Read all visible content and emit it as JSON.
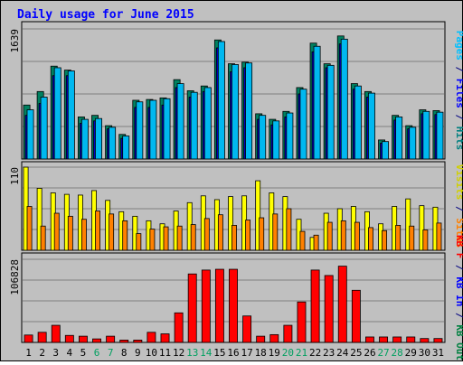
{
  "chart_data": {
    "type": "bar",
    "title": "Daily usage for June 2015",
    "categories": [
      "1",
      "2",
      "3",
      "4",
      "5",
      "6",
      "7",
      "8",
      "9",
      "10",
      "11",
      "12",
      "13",
      "14",
      "15",
      "16",
      "17",
      "18",
      "19",
      "20",
      "21",
      "22",
      "23",
      "24",
      "25",
      "26",
      "27",
      "28",
      "29",
      "30",
      "31"
    ],
    "weekend_days": [
      "6",
      "7",
      "13",
      "14",
      "20",
      "21",
      "27",
      "28"
    ],
    "panels": [
      {
        "id": "top",
        "ymax": 1639,
        "ymax_label": "1639",
        "label_parts": [
          {
            "text": "Pages",
            "color": "#00c0ff"
          },
          {
            "text": " / ",
            "color": "#000080"
          },
          {
            "text": "Files",
            "color": "#0000ff"
          },
          {
            "text": " / ",
            "color": "#000080"
          },
          {
            "text": "Hits",
            "color": "#008080"
          }
        ],
        "series": [
          {
            "name": "Hits",
            "color": "#008060",
            "values": [
              680,
              850,
              1170,
              1120,
              530,
              550,
              420,
              310,
              740,
              750,
              770,
              1000,
              860,
              920,
              1500,
              1200,
              1220,
              570,
              500,
              600,
              900,
              1460,
              1200,
              1550,
              950,
              850,
              240,
              550,
              420,
              620,
              610
            ]
          },
          {
            "name": "Files",
            "color": "#0000c0",
            "values": [
              550,
              700,
              1050,
              1050,
              450,
              480,
              380,
              260,
              650,
              650,
              680,
              900,
              780,
              850,
              1400,
              1100,
              1150,
              500,
              430,
              530,
              820,
              1350,
              1150,
              1450,
              880,
              780,
              200,
              490,
              380,
              570,
              560
            ]
          },
          {
            "name": "Pages",
            "color": "#00b8f0",
            "values": [
              620,
              780,
              1150,
              1110,
              500,
              510,
              400,
              290,
              720,
              740,
              760,
              950,
              840,
              900,
              1480,
              1190,
              1210,
              550,
              480,
              580,
              880,
              1420,
              1180,
              1510,
              920,
              830,
              220,
              530,
              400,
              600,
              590
            ]
          }
        ]
      },
      {
        "id": "middle",
        "ymax": 110,
        "ymax_label": "110",
        "label_parts": [
          {
            "text": "Visits",
            "color": "#d0d000"
          },
          {
            "text": " / ",
            "color": "#000080"
          },
          {
            "text": "Sites",
            "color": "#ff8000"
          }
        ],
        "series": [
          {
            "name": "Visits",
            "color": "#ffff00",
            "values": [
              110,
              82,
              76,
              74,
              73,
              79,
              66,
              51,
              45,
              39,
              35,
              52,
              63,
              72,
              67,
              71,
              72,
              92,
              76,
              71,
              41,
              17,
              49,
              55,
              58,
              51,
              35,
              58,
              68,
              59,
              57
            ]
          },
          {
            "name": "Sites",
            "color": "#ff8000",
            "values": [
              58,
              32,
              49,
              45,
              41,
              52,
              48,
              39,
              22,
              28,
              31,
              32,
              34,
              42,
              47,
              33,
              40,
              43,
              48,
              55,
              25,
              20,
              37,
              39,
              37,
              30,
              26,
              33,
              32,
              27,
              36
            ]
          }
        ]
      },
      {
        "id": "bottom",
        "ymax": 106828,
        "ymax_label": "106828",
        "label_parts": [
          {
            "text": "KB F",
            "color": "#ff0000"
          },
          {
            "text": " / ",
            "color": "#000080"
          },
          {
            "text": "KB In",
            "color": "#0000ff"
          },
          {
            "text": " / ",
            "color": "#000080"
          },
          {
            "text": "KB Out",
            "color": "#008040"
          }
        ],
        "series": [
          {
            "name": "KB F",
            "color": "#ff0000",
            "values": [
              9500,
              13000,
              22000,
              9000,
              8000,
              4500,
              8000,
              3000,
              3000,
              13000,
              11000,
              38000,
              88000,
              93000,
              94000,
              94000,
              34000,
              8000,
              10000,
              22000,
              52000,
              93000,
              86000,
              98000,
              67000,
              7000,
              7000,
              7000,
              7000,
              5000,
              5000
            ]
          }
        ]
      }
    ]
  }
}
